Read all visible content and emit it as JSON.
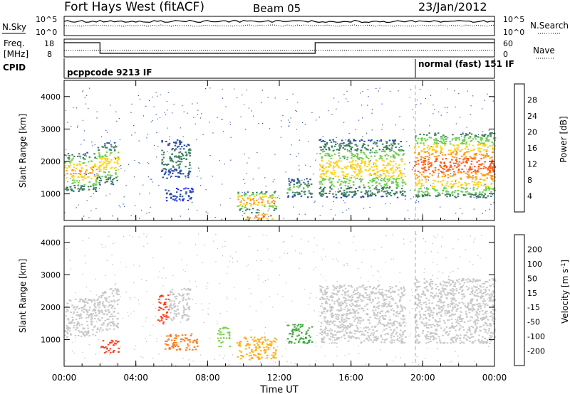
{
  "header": {
    "station": "Fort Hays West (fitACF)",
    "beam": "Beam 05",
    "date": "23/Jan/2012"
  },
  "labels": {
    "nsky": "N.Sky",
    "nsearch": "N.Search",
    "freq_top": "Freq.",
    "freq_unit": "[MHz]",
    "nave": "Nave",
    "cpid": "CPID",
    "cpid_left": "pcppcode 9213 IF",
    "cpid_right": "normal (fast) 151 IF",
    "nsky_ticks": [
      "10^5",
      "10^0"
    ],
    "nsearch_ticks": [
      "10^5",
      "10^0"
    ],
    "freq_ticks": [
      "18",
      "8"
    ],
    "nave_ticks": [
      "60",
      "0"
    ]
  },
  "chart_data": [
    {
      "type": "line",
      "title": "",
      "panel": "noise",
      "series": [
        {
          "name": "N.Sky",
          "style": "solid"
        },
        {
          "name": "N.Search",
          "style": "dotted"
        }
      ],
      "x": [
        "00:00",
        "04:00",
        "08:00",
        "12:00",
        "16:00",
        "20:00",
        "00:00"
      ],
      "ylim_left": [
        "10^0",
        "10^5"
      ],
      "ylim_right": [
        "10^0",
        "10^5"
      ]
    },
    {
      "type": "line",
      "panel": "frequency",
      "series": [
        {
          "name": "Freq.",
          "style": "solid",
          "x_hours": [
            0,
            2.0,
            2.0,
            14.0,
            14.0,
            24
          ],
          "values": [
            16,
            16,
            10,
            10,
            16,
            16
          ]
        },
        {
          "name": "Nave",
          "style": "dotted",
          "x_hours": [
            0,
            2.0,
            2.0,
            14.0,
            14.0,
            24
          ],
          "values": [
            22,
            22,
            22,
            22,
            22,
            22
          ]
        }
      ],
      "ylim": [
        8,
        18
      ],
      "ylim_right": [
        0,
        60
      ]
    },
    {
      "type": "heatmap",
      "panel": "power",
      "ylabel": "Slant Range [km]",
      "xlabel": "",
      "colorbar_label": "Power [dB]",
      "colorbar_ticks": [
        "28",
        "24",
        "20",
        "16",
        "12",
        "8",
        "4"
      ],
      "colorbar_colors": [
        "#2b2bff",
        "#2b4fa8",
        "#3d7f5e",
        "#6fcf4a",
        "#ffd21a",
        "#ff9a1a",
        "#ff5a14",
        "#ff1a1a"
      ],
      "y_ticks": [
        "4000",
        "3000",
        "2000",
        "1000"
      ],
      "ylim": [
        180,
        4500
      ],
      "x_ticks": [
        "00:00",
        "04:00",
        "08:00",
        "12:00",
        "16:00",
        "20:00",
        "00:00"
      ],
      "xlim_hours": [
        0,
        24
      ],
      "regions": [
        {
          "t0": 0.0,
          "t1": 1.8,
          "r0": 1100,
          "r1": 2300,
          "peak_db": 22
        },
        {
          "t0": 1.8,
          "t1": 3.0,
          "r0": 1300,
          "r1": 2600,
          "peak_db": 20
        },
        {
          "t0": 5.4,
          "t1": 7.0,
          "r0": 1500,
          "r1": 2700,
          "peak_db": 12
        },
        {
          "t0": 5.6,
          "t1": 7.2,
          "r0": 800,
          "r1": 1200,
          "peak_db": 8
        },
        {
          "t0": 9.6,
          "t1": 11.8,
          "r0": 500,
          "r1": 1100,
          "peak_db": 24
        },
        {
          "t0": 10.0,
          "t1": 11.6,
          "r0": 200,
          "r1": 450,
          "peak_db": 28
        },
        {
          "t0": 12.4,
          "t1": 13.8,
          "r0": 900,
          "r1": 1500,
          "peak_db": 14
        },
        {
          "t0": 14.2,
          "t1": 19.0,
          "r0": 900,
          "r1": 2700,
          "peak_db": 20
        },
        {
          "t0": 19.5,
          "t1": 24.0,
          "r0": 900,
          "r1": 2900,
          "peak_db": 28
        }
      ]
    },
    {
      "type": "heatmap",
      "panel": "velocity",
      "ylabel": "Slant Range [km]",
      "xlabel": "Time UT",
      "colorbar_label": "Velocity [m s^-1]",
      "colorbar_ticks": [
        "200",
        "100",
        "50",
        "15",
        "-15",
        "-50",
        "-100",
        "-200"
      ],
      "colorbar_colors": [
        "#1f2fa8",
        "#3a58c8",
        "#3fa83f",
        "#78d24a",
        "#c8c8c8",
        "#ffb01a",
        "#ff7a1a",
        "#ff3a1a",
        "#e61010"
      ],
      "y_ticks": [
        "4000",
        "3000",
        "2000",
        "1000"
      ],
      "ylim": [
        180,
        4500
      ],
      "x_ticks": [
        "00:00",
        "04:00",
        "08:00",
        "12:00",
        "16:00",
        "20:00",
        "00:00"
      ],
      "xlim_hours": [
        0,
        24
      ],
      "regions": [
        {
          "t0": 0.0,
          "t1": 1.8,
          "r0": 1100,
          "r1": 2300,
          "vel": 0
        },
        {
          "t0": 1.8,
          "t1": 3.0,
          "r0": 1300,
          "r1": 2600,
          "vel": 0
        },
        {
          "t0": 2.0,
          "t1": 3.0,
          "r0": 600,
          "r1": 1000,
          "vel": -200
        },
        {
          "t0": 5.2,
          "t1": 5.8,
          "r0": 1500,
          "r1": 2400,
          "vel": -200
        },
        {
          "t0": 5.8,
          "t1": 7.0,
          "r0": 1600,
          "r1": 2600,
          "vel": 0
        },
        {
          "t0": 5.6,
          "t1": 7.4,
          "r0": 700,
          "r1": 1200,
          "vel": -100
        },
        {
          "t0": 8.5,
          "t1": 9.2,
          "r0": 800,
          "r1": 1400,
          "vel": 15
        },
        {
          "t0": 9.6,
          "t1": 11.8,
          "r0": 400,
          "r1": 1100,
          "vel": -50
        },
        {
          "t0": 12.4,
          "t1": 13.8,
          "r0": 900,
          "r1": 1500,
          "vel": 50
        },
        {
          "t0": 14.2,
          "t1": 19.0,
          "r0": 900,
          "r1": 2700,
          "vel": 0
        },
        {
          "t0": 19.5,
          "t1": 24.0,
          "r0": 900,
          "r1": 2900,
          "vel": 0
        }
      ]
    }
  ]
}
